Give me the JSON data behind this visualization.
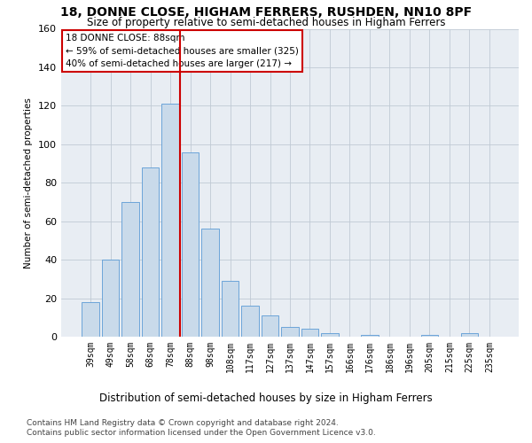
{
  "title": "18, DONNE CLOSE, HIGHAM FERRERS, RUSHDEN, NN10 8PF",
  "subtitle": "Size of property relative to semi-detached houses in Higham Ferrers",
  "xlabel": "Distribution of semi-detached houses by size in Higham Ferrers",
  "ylabel": "Number of semi-detached properties",
  "categories": [
    "39sqm",
    "49sqm",
    "58sqm",
    "68sqm",
    "78sqm",
    "88sqm",
    "98sqm",
    "108sqm",
    "117sqm",
    "127sqm",
    "137sqm",
    "147sqm",
    "157sqm",
    "166sqm",
    "176sqm",
    "186sqm",
    "196sqm",
    "205sqm",
    "215sqm",
    "225sqm",
    "235sqm"
  ],
  "values": [
    18,
    40,
    70,
    88,
    121,
    96,
    56,
    29,
    16,
    11,
    5,
    4,
    2,
    0,
    1,
    0,
    0,
    1,
    0,
    2,
    0
  ],
  "bar_color": "#c9daea",
  "bar_edge_color": "#5b9bd5",
  "vline_color": "#cc0000",
  "vline_x_index": 4.5,
  "annotation_line1": "18 DONNE CLOSE: 88sqm",
  "annotation_line2": "← 59% of semi-detached houses are smaller (325)",
  "annotation_line3": "40% of semi-detached houses are larger (217) →",
  "ylim": [
    0,
    160
  ],
  "yticks": [
    0,
    20,
    40,
    60,
    80,
    100,
    120,
    140,
    160
  ],
  "footnote_line1": "Contains HM Land Registry data © Crown copyright and database right 2024.",
  "footnote_line2": "Contains public sector information licensed under the Open Government Licence v3.0.",
  "bg_color": "#ffffff",
  "plot_bg_color": "#e8edf3",
  "grid_color": "#c0cad4"
}
